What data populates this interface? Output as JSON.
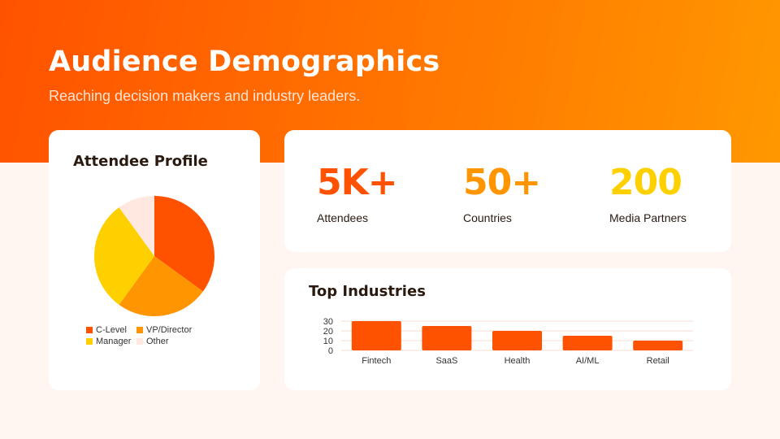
{
  "header": {
    "title": "Audience Demographics",
    "subtitle": "Reaching decision makers and industry leaders."
  },
  "profile": {
    "title": "Attendee Profile"
  },
  "stats": [
    {
      "value": "5K+",
      "label": "Attendees",
      "color": "#FF5200"
    },
    {
      "value": "50+",
      "label": "Countries",
      "color": "#FF9500"
    },
    {
      "value": "200",
      "label": "Media Partners",
      "color": "#FFD000"
    }
  ],
  "industries": {
    "title": "Top Industries"
  },
  "chart_data": [
    {
      "type": "pie",
      "title": "Attendee Profile",
      "categories": [
        "C-Level",
        "VP/Director",
        "Manager",
        "Other"
      ],
      "values": [
        35,
        25,
        30,
        10
      ],
      "colors": [
        "#FF5200",
        "#FF9500",
        "#FFD000",
        "#FFE8E0"
      ],
      "legend": "bottom"
    },
    {
      "type": "bar",
      "title": "Top Industries",
      "categories": [
        "Fintech",
        "SaaS",
        "Health",
        "AI/ML",
        "Retail"
      ],
      "values": [
        30,
        25,
        20,
        15,
        10
      ],
      "yticks": [
        0,
        10,
        20,
        30
      ],
      "ylim": [
        0,
        30
      ],
      "color": "#FF5200",
      "grid": true
    }
  ]
}
